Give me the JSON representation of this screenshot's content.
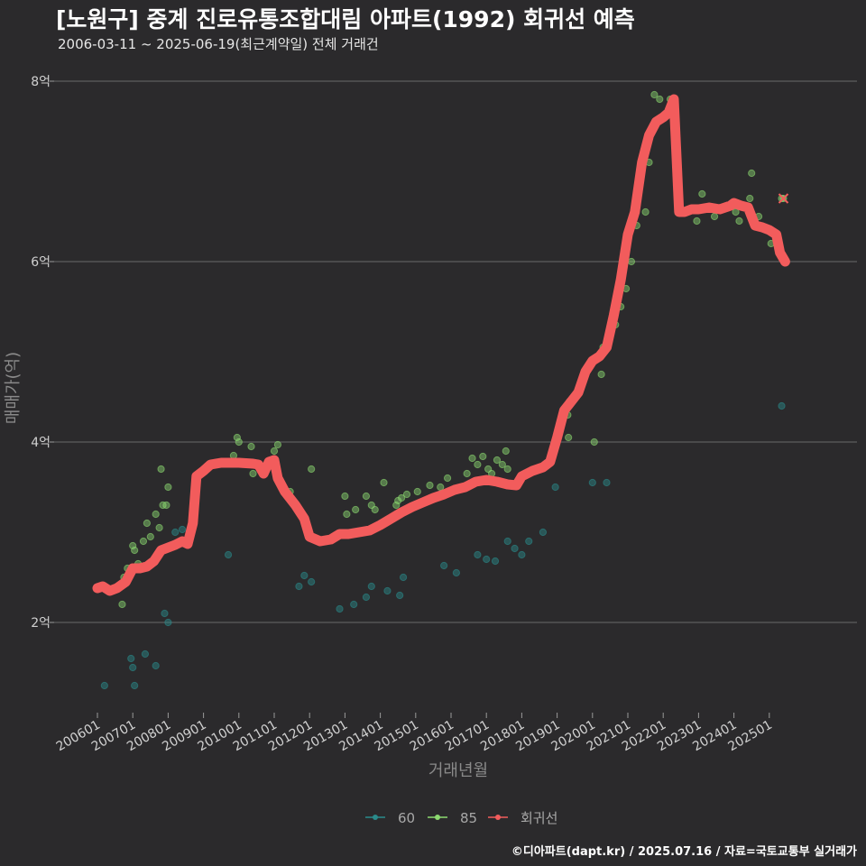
{
  "chart_data": {
    "type": "scatter",
    "title": "[노원구] 중계 진로유통조합대림 아파트(1992) 회귀선 예측",
    "subtitle": "2006-03-11 ~ 2025-06-19(최근계약일) 전체 거래건",
    "xlabel": "거래년월",
    "ylabel": "매매가(억)",
    "caption": "©디아파트(dapt.kr) / 2025.07.16 / 자료=국토교통부 실거래가",
    "xlim": [
      2006.0,
      2025.7
    ],
    "ylim": [
      1.0,
      8.3
    ],
    "y_ticks": [
      {
        "value": 2,
        "label": "2억"
      },
      {
        "value": 4,
        "label": "4억"
      },
      {
        "value": 6,
        "label": "6억"
      },
      {
        "value": 8,
        "label": "8억"
      }
    ],
    "x_ticks": [
      {
        "value": 2006,
        "label": "200601"
      },
      {
        "value": 2007,
        "label": "200701"
      },
      {
        "value": 2008,
        "label": "200801"
      },
      {
        "value": 2009,
        "label": "200901"
      },
      {
        "value": 2010,
        "label": "201001"
      },
      {
        "value": 2011,
        "label": "201101"
      },
      {
        "value": 2012,
        "label": "201201"
      },
      {
        "value": 2013,
        "label": "201301"
      },
      {
        "value": 2014,
        "label": "201401"
      },
      {
        "value": 2015,
        "label": "201501"
      },
      {
        "value": 2016,
        "label": "201601"
      },
      {
        "value": 2017,
        "label": "201701"
      },
      {
        "value": 2018,
        "label": "201801"
      },
      {
        "value": 2019,
        "label": "201901"
      },
      {
        "value": 2020,
        "label": "202001"
      },
      {
        "value": 2021,
        "label": "202101"
      },
      {
        "value": 2022,
        "label": "202201"
      },
      {
        "value": 2023,
        "label": "202301"
      },
      {
        "value": 2024,
        "label": "202401"
      },
      {
        "value": 2025,
        "label": "202501"
      }
    ],
    "legend": [
      {
        "name": "60",
        "color": "#2a8b8b"
      },
      {
        "name": "85",
        "color": "#8cd970"
      },
      {
        "name": "회귀선",
        "color": "#f25c5c"
      }
    ],
    "series": [
      {
        "name": "60",
        "color": "#2a8b8b",
        "points": [
          [
            2006.2,
            1.3
          ],
          [
            2006.95,
            1.6
          ],
          [
            2007.0,
            1.5
          ],
          [
            2007.05,
            1.3
          ],
          [
            2007.35,
            1.65
          ],
          [
            2007.65,
            1.52
          ],
          [
            2007.9,
            2.1
          ],
          [
            2008.0,
            2.0
          ],
          [
            2008.2,
            3.0
          ],
          [
            2008.4,
            3.03
          ],
          [
            2009.7,
            2.75
          ],
          [
            2011.7,
            2.4
          ],
          [
            2011.85,
            2.52
          ],
          [
            2012.05,
            2.45
          ],
          [
            2012.85,
            2.15
          ],
          [
            2013.25,
            2.2
          ],
          [
            2013.6,
            2.28
          ],
          [
            2013.75,
            2.4
          ],
          [
            2014.2,
            2.35
          ],
          [
            2014.55,
            2.3
          ],
          [
            2014.65,
            2.5
          ],
          [
            2015.8,
            2.63
          ],
          [
            2016.15,
            2.55
          ],
          [
            2016.75,
            2.75
          ],
          [
            2017.0,
            2.7
          ],
          [
            2017.25,
            2.68
          ],
          [
            2017.6,
            2.9
          ],
          [
            2017.8,
            2.82
          ],
          [
            2018.0,
            2.75
          ],
          [
            2018.2,
            2.9
          ],
          [
            2018.6,
            3.0
          ],
          [
            2018.95,
            3.5
          ],
          [
            2020.0,
            3.55
          ],
          [
            2020.4,
            3.55
          ],
          [
            2025.35,
            4.4
          ]
        ]
      },
      {
        "name": "85",
        "color": "#8cd970",
        "points": [
          [
            2006.7,
            2.2
          ],
          [
            2006.75,
            2.5
          ],
          [
            2006.85,
            2.6
          ],
          [
            2007.0,
            2.85
          ],
          [
            2007.05,
            2.8
          ],
          [
            2007.15,
            2.65
          ],
          [
            2007.3,
            2.9
          ],
          [
            2007.4,
            3.1
          ],
          [
            2007.5,
            2.95
          ],
          [
            2007.65,
            3.2
          ],
          [
            2007.75,
            3.05
          ],
          [
            2007.8,
            3.7
          ],
          [
            2007.85,
            3.3
          ],
          [
            2007.95,
            3.3
          ],
          [
            2008.0,
            3.5
          ],
          [
            2009.85,
            3.85
          ],
          [
            2009.95,
            4.05
          ],
          [
            2010.0,
            4.0
          ],
          [
            2010.35,
            3.95
          ],
          [
            2010.4,
            3.65
          ],
          [
            2011.0,
            3.9
          ],
          [
            2011.1,
            3.97
          ],
          [
            2011.45,
            3.45
          ],
          [
            2012.05,
            3.7
          ],
          [
            2013.0,
            3.4
          ],
          [
            2013.05,
            3.2
          ],
          [
            2013.3,
            3.25
          ],
          [
            2013.6,
            3.4
          ],
          [
            2013.75,
            3.3
          ],
          [
            2013.85,
            3.25
          ],
          [
            2014.1,
            3.55
          ],
          [
            2014.45,
            3.3
          ],
          [
            2014.5,
            3.35
          ],
          [
            2014.6,
            3.38
          ],
          [
            2014.75,
            3.42
          ],
          [
            2015.05,
            3.45
          ],
          [
            2015.4,
            3.52
          ],
          [
            2015.7,
            3.5
          ],
          [
            2015.9,
            3.6
          ],
          [
            2016.45,
            3.65
          ],
          [
            2016.6,
            3.82
          ],
          [
            2016.75,
            3.75
          ],
          [
            2016.9,
            3.84
          ],
          [
            2017.05,
            3.7
          ],
          [
            2017.15,
            3.65
          ],
          [
            2017.3,
            3.8
          ],
          [
            2017.45,
            3.75
          ],
          [
            2017.55,
            3.9
          ],
          [
            2017.6,
            3.7
          ],
          [
            2019.35,
            4.45
          ],
          [
            2019.3,
            4.3
          ],
          [
            2019.32,
            4.05
          ],
          [
            2020.0,
            4.9
          ],
          [
            2020.05,
            4.0
          ],
          [
            2020.25,
            4.75
          ],
          [
            2020.3,
            5.05
          ],
          [
            2020.4,
            5.1
          ],
          [
            2020.65,
            5.3
          ],
          [
            2020.8,
            5.5
          ],
          [
            2020.95,
            5.7
          ],
          [
            2021.1,
            6.0
          ],
          [
            2021.25,
            6.4
          ],
          [
            2021.5,
            6.55
          ],
          [
            2021.6,
            7.1
          ],
          [
            2021.75,
            7.85
          ],
          [
            2021.9,
            7.8
          ],
          [
            2022.2,
            7.8
          ],
          [
            2022.95,
            6.45
          ],
          [
            2023.1,
            6.75
          ],
          [
            2023.45,
            6.5
          ],
          [
            2023.65,
            6.6
          ],
          [
            2024.05,
            6.55
          ],
          [
            2024.15,
            6.45
          ],
          [
            2024.45,
            6.7
          ],
          [
            2024.5,
            6.98
          ],
          [
            2024.7,
            6.5
          ],
          [
            2025.05,
            6.2
          ],
          [
            2025.35,
            6.7
          ]
        ]
      },
      {
        "name": "회귀선",
        "color": "#f25c5c",
        "points": [
          [
            2006.0,
            2.38
          ],
          [
            2006.15,
            2.4
          ],
          [
            2006.35,
            2.35
          ],
          [
            2006.55,
            2.38
          ],
          [
            2006.8,
            2.45
          ],
          [
            2007.0,
            2.6
          ],
          [
            2007.2,
            2.6
          ],
          [
            2007.4,
            2.62
          ],
          [
            2007.6,
            2.68
          ],
          [
            2007.8,
            2.8
          ],
          [
            2008.0,
            2.83
          ],
          [
            2008.2,
            2.86
          ],
          [
            2008.4,
            2.9
          ],
          [
            2008.55,
            2.87
          ],
          [
            2008.7,
            3.1
          ],
          [
            2008.8,
            3.62
          ],
          [
            2009.0,
            3.68
          ],
          [
            2009.2,
            3.75
          ],
          [
            2009.5,
            3.77
          ],
          [
            2010.0,
            3.77
          ],
          [
            2010.4,
            3.76
          ],
          [
            2010.55,
            3.75
          ],
          [
            2010.7,
            3.65
          ],
          [
            2010.85,
            3.78
          ],
          [
            2011.0,
            3.8
          ],
          [
            2011.1,
            3.6
          ],
          [
            2011.3,
            3.45
          ],
          [
            2011.6,
            3.3
          ],
          [
            2011.85,
            3.15
          ],
          [
            2012.0,
            2.95
          ],
          [
            2012.3,
            2.9
          ],
          [
            2012.6,
            2.92
          ],
          [
            2012.85,
            2.98
          ],
          [
            2013.1,
            2.98
          ],
          [
            2013.4,
            3.0
          ],
          [
            2013.7,
            3.02
          ],
          [
            2014.0,
            3.08
          ],
          [
            2014.3,
            3.15
          ],
          [
            2014.6,
            3.22
          ],
          [
            2014.9,
            3.28
          ],
          [
            2015.2,
            3.33
          ],
          [
            2015.5,
            3.38
          ],
          [
            2015.8,
            3.42
          ],
          [
            2016.1,
            3.47
          ],
          [
            2016.4,
            3.5
          ],
          [
            2016.7,
            3.56
          ],
          [
            2017.0,
            3.58
          ],
          [
            2017.3,
            3.56
          ],
          [
            2017.6,
            3.53
          ],
          [
            2017.85,
            3.52
          ],
          [
            2018.0,
            3.62
          ],
          [
            2018.3,
            3.68
          ],
          [
            2018.6,
            3.72
          ],
          [
            2018.8,
            3.78
          ],
          [
            2019.0,
            4.05
          ],
          [
            2019.2,
            4.35
          ],
          [
            2019.4,
            4.45
          ],
          [
            2019.6,
            4.55
          ],
          [
            2019.8,
            4.78
          ],
          [
            2020.0,
            4.9
          ],
          [
            2020.2,
            4.95
          ],
          [
            2020.4,
            5.05
          ],
          [
            2020.6,
            5.4
          ],
          [
            2020.8,
            5.8
          ],
          [
            2021.0,
            6.3
          ],
          [
            2021.2,
            6.55
          ],
          [
            2021.4,
            7.1
          ],
          [
            2021.6,
            7.4
          ],
          [
            2021.8,
            7.55
          ],
          [
            2022.0,
            7.6
          ],
          [
            2022.15,
            7.65
          ],
          [
            2022.3,
            7.8
          ],
          [
            2022.45,
            6.55
          ],
          [
            2022.6,
            6.55
          ],
          [
            2022.8,
            6.58
          ],
          [
            2023.0,
            6.58
          ],
          [
            2023.3,
            6.6
          ],
          [
            2023.6,
            6.58
          ],
          [
            2023.9,
            6.62
          ],
          [
            2024.0,
            6.65
          ],
          [
            2024.2,
            6.62
          ],
          [
            2024.4,
            6.6
          ],
          [
            2024.6,
            6.4
          ],
          [
            2024.8,
            6.38
          ],
          [
            2025.0,
            6.35
          ],
          [
            2025.2,
            6.3
          ],
          [
            2025.3,
            6.1
          ],
          [
            2025.45,
            6.0
          ]
        ]
      }
    ],
    "predicted_point": {
      "x": 2025.4,
      "y": 6.7,
      "marker": "x",
      "color": "#f25c5c"
    }
  }
}
